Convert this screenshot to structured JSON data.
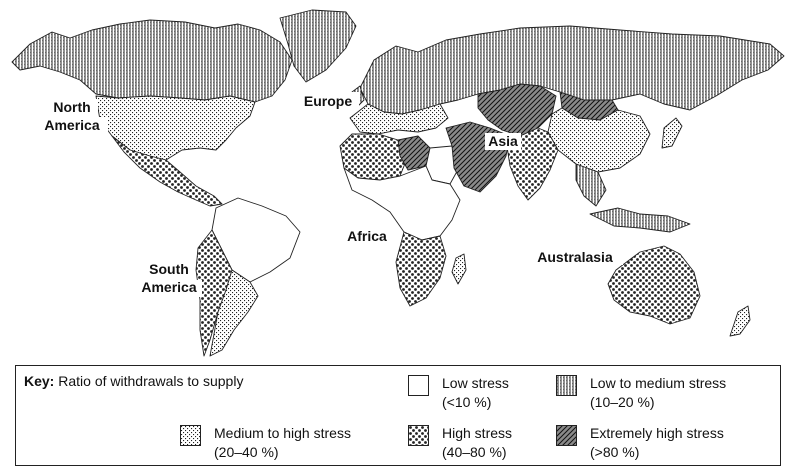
{
  "regions": {
    "north_america": [
      "North",
      "America"
    ],
    "europe": "Europe",
    "asia": "Asia",
    "africa": "Africa",
    "south_america": [
      "South",
      "America"
    ],
    "australasia": "Australasia"
  },
  "key": {
    "title_bold": "Key:",
    "title_rest": " Ratio of withdrawals to supply",
    "items": [
      {
        "label": "Low stress",
        "range": "(<10 %)",
        "pattern": "none"
      },
      {
        "label": "Low to medium stress",
        "range": "(10–20 %)",
        "pattern": "vertical-lines"
      },
      {
        "label": "Medium to high stress",
        "range": "(20–40 %)",
        "pattern": "sparse-dots"
      },
      {
        "label": "High stress",
        "range": "(40–80 %)",
        "pattern": "dense-dots"
      },
      {
        "label": "Extremely high stress",
        "range": "(>80 %)",
        "pattern": "cross-hatch"
      }
    ]
  },
  "map_data": {
    "regions_stress": {
      "Canada": "Low to medium stress",
      "USA": "Medium to high stress",
      "Mexico": "High stress",
      "Central America": "High stress",
      "Northern South America": "Low stress",
      "Western South America": "High stress",
      "Southern South America": "Medium to high stress",
      "Greenland": "Low to medium stress",
      "Northern Europe": "Low to medium stress",
      "Russia": "Low to medium stress",
      "Central Asia": "Extremely high stress",
      "Middle East": "Extremely high stress",
      "Arabian Peninsula": "Extremely high stress",
      "North Africa": "High stress",
      "Libya": "Extremely high stress",
      "Sub-Saharan Africa": "Low stress",
      "Southern Africa": "High stress",
      "South Asia": "High stress",
      "China": "Medium to high stress",
      "Mongolia": "Extremely high stress",
      "Southeast Asia": "Low to medium stress",
      "Australia": "High stress",
      "New Zealand": "Medium to high stress"
    }
  }
}
